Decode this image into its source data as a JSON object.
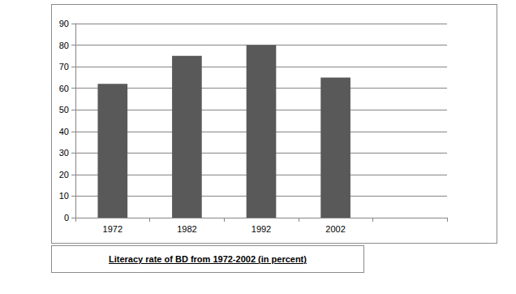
{
  "chart_data": {
    "type": "bar",
    "title": "Literacy rate of BD from 1972-2002 (in percent)",
    "categories": [
      "1972",
      "1982",
      "1992",
      "2002",
      null
    ],
    "values": [
      62,
      75,
      80,
      65,
      null
    ],
    "color": "#595959",
    "ylim": [
      0,
      90
    ],
    "yticks": [
      0,
      10,
      20,
      30,
      40,
      50,
      60,
      70,
      80,
      90
    ],
    "grid": true
  }
}
